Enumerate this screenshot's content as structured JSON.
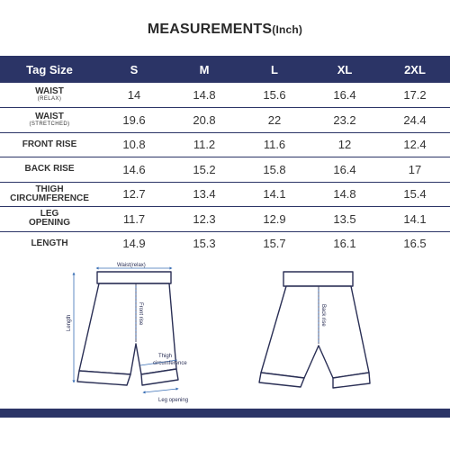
{
  "title": {
    "main": "MEASUREMENTS",
    "unit": "(Inch)"
  },
  "table": {
    "header": [
      "Tag Size",
      "S",
      "M",
      "L",
      "XL",
      "2XL"
    ],
    "rows": [
      {
        "label": "WAIST",
        "sub": "(RELAX)",
        "values": [
          "14",
          "14.8",
          "15.6",
          "16.4",
          "17.2"
        ]
      },
      {
        "label": "WAIST",
        "sub": "(STRETCHED)",
        "values": [
          "19.6",
          "20.8",
          "22",
          "23.2",
          "24.4"
        ]
      },
      {
        "label": "FRONT RISE",
        "sub": "",
        "values": [
          "10.8",
          "11.2",
          "11.6",
          "12",
          "12.4"
        ]
      },
      {
        "label": "BACK RISE",
        "sub": "",
        "values": [
          "14.6",
          "15.2",
          "15.8",
          "16.4",
          "17"
        ]
      },
      {
        "label": "THIGH",
        "sub": "",
        "label2": "CIRCUMFERENCE",
        "values": [
          "12.7",
          "13.4",
          "14.1",
          "14.8",
          "15.4"
        ]
      },
      {
        "label": "LEG",
        "sub": "",
        "label2": "OPENING",
        "values": [
          "11.7",
          "12.3",
          "12.9",
          "13.5",
          "14.1"
        ]
      },
      {
        "label": "LENGTH",
        "sub": "",
        "values": [
          "14.9",
          "15.3",
          "15.7",
          "16.1",
          "16.5"
        ]
      }
    ]
  },
  "diagram": {
    "waist_label": "Waist(relax)",
    "length_label": "Length",
    "front_rise_label": "Front rise",
    "thigh_label": "Thigh",
    "thigh_label2": "circumference",
    "leg_opening_label": "Leg opening",
    "back_rise_label": "Back rise"
  },
  "colors": {
    "accent": "#2b3466",
    "measure_line": "#3a6fb5"
  }
}
